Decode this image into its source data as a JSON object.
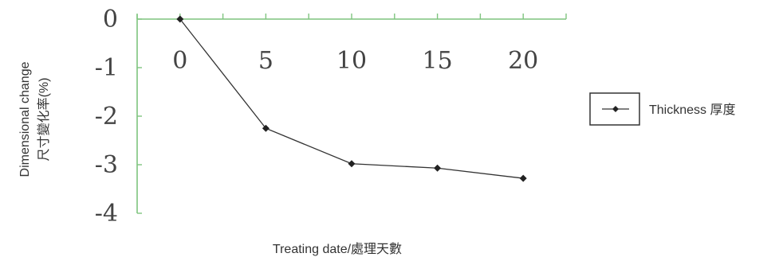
{
  "chart_data": {
    "type": "line",
    "xlabel": "Treating date/處理天數",
    "ylabel": [
      "Dimensional change",
      "尺寸變化率(%)"
    ],
    "x": [
      0,
      5,
      10,
      15,
      20
    ],
    "xlim": [
      -2.5,
      22.5
    ],
    "ylim": [
      -4,
      0
    ],
    "x_ticks": [
      "0",
      "5",
      "10",
      "15",
      "20"
    ],
    "y_ticks": [
      "0",
      "-1",
      "-2",
      "-3",
      "-4"
    ],
    "series": [
      {
        "name": "Thickness 厚度",
        "values": [
          0,
          -2.25,
          -2.98,
          -3.07,
          -3.28
        ],
        "marker": "diamond",
        "color": "#333333"
      }
    ],
    "axis_color": "#7fc47f",
    "grid": false,
    "legend": "right"
  }
}
